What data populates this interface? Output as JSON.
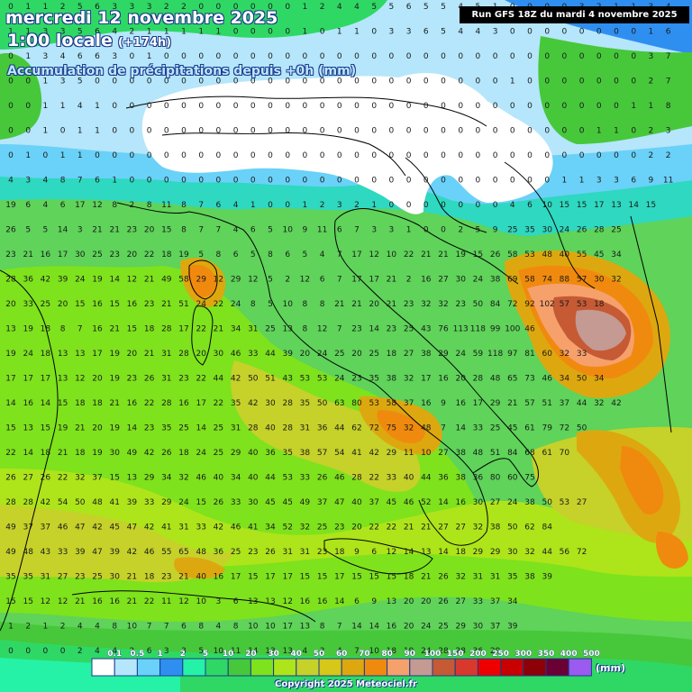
{
  "header": {
    "date": "mercredi 12 novembre 2025",
    "time": "1:00 locale",
    "lead": "(+174h)",
    "description": "Accumulation de précipitations depuis +0h (mm)",
    "run": "Run GFS 18Z du mardi 4 novembre 2025"
  },
  "legend": {
    "unit": "(mm)",
    "labels": [
      "0.1",
      "0.5",
      "1",
      "2",
      "5",
      "10",
      "20",
      "30",
      "40",
      "50",
      "60",
      "70",
      "80",
      "90",
      "100",
      "150",
      "200",
      "250",
      "300",
      "350",
      "400",
      "500"
    ],
    "colors": [
      "#ffffff",
      "#b5e6fb",
      "#6ad1f8",
      "#2f8ff0",
      "#25f2a6",
      "#2fd865",
      "#46c83a",
      "#7ee21c",
      "#aee41a",
      "#c6d12a",
      "#d6c718",
      "#dda80f",
      "#f08a0e",
      "#f6a06c",
      "#c49a92",
      "#c55a34",
      "#d8392c",
      "#ef0000",
      "#c80000",
      "#8e0007",
      "#6a0034",
      "#9b5af0"
    ]
  },
  "map": {
    "grid": [
      [
        "0",
        "1",
        "1",
        "2",
        "5",
        "6",
        "3",
        "3",
        "3",
        "2",
        "2",
        "0",
        "0",
        "0",
        "0",
        "0",
        "0",
        "1",
        "2",
        "4",
        "4",
        "5",
        "5",
        "6",
        "5",
        "5",
        "4",
        "5",
        "1",
        "0",
        "0",
        "0",
        "0",
        "3",
        "2",
        "1",
        "1",
        "3",
        "4",
        "5",
        "6",
        "4"
      ],
      [
        "1",
        "1",
        "3",
        "3",
        "5",
        "6",
        "4",
        "2",
        "1",
        "1",
        "1",
        "1",
        "1",
        "0",
        "0",
        "0",
        "0",
        "1",
        "0",
        "1",
        "1",
        "0",
        "3",
        "3",
        "6",
        "5",
        "4",
        "4",
        "3",
        "0",
        "0",
        "0",
        "0",
        "0",
        "0",
        "0",
        "0",
        "1",
        "6",
        "8"
      ],
      [
        "0",
        "1",
        "3",
        "4",
        "6",
        "6",
        "3",
        "0",
        "1",
        "0",
        "0",
        "0",
        "0",
        "0",
        "0",
        "0",
        "0",
        "0",
        "0",
        "0",
        "0",
        "0",
        "0",
        "0",
        "0",
        "0",
        "0",
        "0",
        "0",
        "0",
        "0",
        "0",
        "0",
        "0",
        "0",
        "0",
        "0",
        "3",
        "7",
        "11"
      ],
      [
        "0",
        "0",
        "1",
        "3",
        "5",
        "0",
        "0",
        "0",
        "0",
        "0",
        "0",
        "0",
        "0",
        "0",
        "0",
        "0",
        "0",
        "0",
        "0",
        "0",
        "0",
        "0",
        "0",
        "0",
        "0",
        "0",
        "0",
        "0",
        "0",
        "1",
        "0",
        "0",
        "0",
        "0",
        "0",
        "0",
        "0",
        "2",
        "7",
        "6"
      ],
      [
        "0",
        "0",
        "1",
        "1",
        "4",
        "1",
        "0",
        "0",
        "0",
        "0",
        "0",
        "0",
        "0",
        "0",
        "0",
        "0",
        "0",
        "0",
        "0",
        "0",
        "0",
        "0",
        "0",
        "0",
        "0",
        "0",
        "0",
        "0",
        "0",
        "0",
        "0",
        "0",
        "0",
        "0",
        "0",
        "0",
        "1",
        "1",
        "8",
        "8"
      ],
      [
        "0",
        "0",
        "1",
        "0",
        "1",
        "1",
        "0",
        "0",
        "0",
        "0",
        "0",
        "0",
        "0",
        "0",
        "0",
        "0",
        "0",
        "0",
        "0",
        "0",
        "0",
        "0",
        "0",
        "0",
        "0",
        "0",
        "0",
        "0",
        "0",
        "0",
        "0",
        "0",
        "0",
        "0",
        "1",
        "1",
        "0",
        "2",
        "3",
        "7"
      ],
      [
        "0",
        "1",
        "0",
        "1",
        "1",
        "0",
        "0",
        "0",
        "0",
        "0",
        "0",
        "0",
        "0",
        "0",
        "0",
        "0",
        "0",
        "0",
        "0",
        "0",
        "0",
        "0",
        "0",
        "0",
        "0",
        "0",
        "0",
        "0",
        "0",
        "0",
        "0",
        "0",
        "0",
        "0",
        "0",
        "0",
        "0",
        "2",
        "2",
        "7"
      ],
      [
        "4",
        "3",
        "4",
        "8",
        "7",
        "6",
        "1",
        "0",
        "0",
        "0",
        "0",
        "0",
        "0",
        "0",
        "0",
        "0",
        "0",
        "0",
        "0",
        "0",
        "0",
        "0",
        "0",
        "0",
        "0",
        "0",
        "0",
        "0",
        "0",
        "0",
        "0",
        "0",
        "1",
        "1",
        "3",
        "3",
        "6",
        "9",
        "11"
      ],
      [
        "19",
        "6",
        "4",
        "6",
        "17",
        "12",
        "8",
        "2",
        "8",
        "11",
        "8",
        "7",
        "6",
        "4",
        "1",
        "0",
        "0",
        "1",
        "2",
        "3",
        "2",
        "1",
        "0",
        "0",
        "0",
        "0",
        "0",
        "0",
        "0",
        "4",
        "6",
        "10",
        "15",
        "15",
        "17",
        "13",
        "14",
        "15"
      ],
      [
        "26",
        "5",
        "5",
        "14",
        "3",
        "21",
        "21",
        "23",
        "20",
        "15",
        "8",
        "7",
        "7",
        "4",
        "6",
        "5",
        "10",
        "9",
        "11",
        "6",
        "7",
        "3",
        "3",
        "1",
        "0",
        "0",
        "2",
        "5",
        "9",
        "25",
        "35",
        "30",
        "24",
        "26",
        "28",
        "25"
      ],
      [
        "23",
        "21",
        "16",
        "17",
        "30",
        "25",
        "23",
        "20",
        "22",
        "18",
        "19",
        "5",
        "8",
        "6",
        "5",
        "8",
        "6",
        "5",
        "4",
        "7",
        "17",
        "12",
        "10",
        "22",
        "21",
        "21",
        "19",
        "15",
        "26",
        "58",
        "53",
        "48",
        "40",
        "55",
        "45",
        "34"
      ],
      [
        "28",
        "36",
        "42",
        "39",
        "24",
        "19",
        "14",
        "12",
        "21",
        "49",
        "58",
        "29",
        "12",
        "29",
        "12",
        "5",
        "2",
        "12",
        "6",
        "7",
        "17",
        "17",
        "21",
        "2",
        "16",
        "27",
        "30",
        "24",
        "38",
        "69",
        "58",
        "74",
        "88",
        "57",
        "30",
        "32"
      ],
      [
        "20",
        "33",
        "25",
        "20",
        "15",
        "16",
        "15",
        "16",
        "23",
        "21",
        "51",
        "24",
        "22",
        "24",
        "8",
        "5",
        "10",
        "8",
        "8",
        "21",
        "21",
        "20",
        "21",
        "23",
        "32",
        "32",
        "23",
        "50",
        "84",
        "72",
        "92",
        "102",
        "57",
        "53",
        "18"
      ],
      [
        "13",
        "19",
        "18",
        "8",
        "7",
        "16",
        "21",
        "15",
        "18",
        "28",
        "17",
        "22",
        "21",
        "34",
        "31",
        "25",
        "13",
        "8",
        "12",
        "7",
        "23",
        "14",
        "23",
        "25",
        "43",
        "76",
        "113",
        "118",
        "99",
        "100",
        "46"
      ],
      [
        "19",
        "24",
        "18",
        "13",
        "13",
        "17",
        "19",
        "20",
        "21",
        "31",
        "28",
        "20",
        "30",
        "46",
        "33",
        "44",
        "39",
        "20",
        "24",
        "25",
        "20",
        "25",
        "18",
        "27",
        "38",
        "29",
        "24",
        "59",
        "118",
        "97",
        "81",
        "60",
        "32",
        "33"
      ],
      [
        "17",
        "17",
        "17",
        "13",
        "12",
        "20",
        "19",
        "23",
        "26",
        "31",
        "23",
        "22",
        "44",
        "42",
        "50",
        "51",
        "43",
        "53",
        "53",
        "24",
        "23",
        "35",
        "38",
        "32",
        "17",
        "16",
        "20",
        "28",
        "48",
        "65",
        "73",
        "46",
        "34",
        "50",
        "34"
      ],
      [
        "14",
        "16",
        "14",
        "15",
        "18",
        "18",
        "21",
        "16",
        "22",
        "28",
        "16",
        "17",
        "22",
        "35",
        "42",
        "30",
        "28",
        "35",
        "50",
        "63",
        "80",
        "53",
        "58",
        "37",
        "16",
        "9",
        "16",
        "17",
        "29",
        "21",
        "57",
        "51",
        "37",
        "44",
        "32",
        "42"
      ],
      [
        "15",
        "13",
        "15",
        "19",
        "21",
        "20",
        "19",
        "14",
        "23",
        "35",
        "25",
        "14",
        "25",
        "31",
        "28",
        "40",
        "28",
        "31",
        "36",
        "44",
        "62",
        "72",
        "75",
        "32",
        "48",
        "7",
        "14",
        "33",
        "25",
        "45",
        "61",
        "79",
        "72",
        "50"
      ],
      [
        "22",
        "14",
        "18",
        "21",
        "18",
        "19",
        "30",
        "49",
        "42",
        "26",
        "18",
        "24",
        "25",
        "29",
        "40",
        "36",
        "35",
        "38",
        "57",
        "54",
        "41",
        "42",
        "29",
        "11",
        "10",
        "27",
        "38",
        "48",
        "51",
        "84",
        "68",
        "61",
        "70"
      ],
      [
        "26",
        "27",
        "26",
        "22",
        "32",
        "37",
        "15",
        "13",
        "29",
        "34",
        "32",
        "46",
        "40",
        "34",
        "40",
        "44",
        "53",
        "33",
        "26",
        "46",
        "28",
        "22",
        "33",
        "40",
        "44",
        "36",
        "38",
        "36",
        "80",
        "60",
        "75"
      ],
      [
        "28",
        "28",
        "42",
        "54",
        "50",
        "48",
        "41",
        "39",
        "33",
        "29",
        "24",
        "15",
        "26",
        "33",
        "30",
        "45",
        "45",
        "49",
        "37",
        "47",
        "40",
        "37",
        "45",
        "46",
        "52",
        "14",
        "16",
        "30",
        "27",
        "24",
        "38",
        "50",
        "53",
        "27"
      ],
      [
        "49",
        "37",
        "37",
        "46",
        "47",
        "42",
        "45",
        "47",
        "42",
        "41",
        "31",
        "33",
        "42",
        "46",
        "41",
        "34",
        "52",
        "32",
        "25",
        "23",
        "20",
        "22",
        "22",
        "21",
        "21",
        "27",
        "27",
        "32",
        "38",
        "50",
        "62",
        "84"
      ],
      [
        "49",
        "48",
        "43",
        "33",
        "39",
        "47",
        "39",
        "42",
        "46",
        "55",
        "65",
        "48",
        "36",
        "25",
        "23",
        "26",
        "31",
        "31",
        "23",
        "18",
        "9",
        "6",
        "12",
        "14",
        "13",
        "14",
        "18",
        "29",
        "29",
        "30",
        "32",
        "44",
        "56",
        "72"
      ],
      [
        "35",
        "35",
        "31",
        "27",
        "23",
        "25",
        "30",
        "21",
        "18",
        "23",
        "21",
        "40",
        "16",
        "17",
        "15",
        "17",
        "17",
        "15",
        "15",
        "17",
        "15",
        "15",
        "15",
        "18",
        "21",
        "26",
        "32",
        "31",
        "31",
        "35",
        "38",
        "39"
      ],
      [
        "15",
        "15",
        "12",
        "12",
        "21",
        "16",
        "16",
        "21",
        "22",
        "11",
        "12",
        "10",
        "3",
        "6",
        "13",
        "13",
        "12",
        "16",
        "16",
        "14",
        "6",
        "9",
        "13",
        "20",
        "20",
        "26",
        "27",
        "33",
        "37",
        "34"
      ],
      [
        "1",
        "2",
        "1",
        "2",
        "4",
        "4",
        "8",
        "10",
        "7",
        "7",
        "6",
        "8",
        "4",
        "8",
        "10",
        "10",
        "17",
        "13",
        "8",
        "7",
        "14",
        "14",
        "16",
        "20",
        "24",
        "25",
        "29",
        "30",
        "37",
        "39"
      ],
      [
        "0",
        "0",
        "0",
        "0",
        "2",
        "4",
        "4",
        "2",
        "6",
        "3",
        "3",
        "5",
        "10",
        "11",
        "14",
        "13",
        "13",
        "4",
        "3",
        "4",
        "7",
        "10",
        "18",
        "19",
        "24",
        "28",
        "28",
        "36",
        "29"
      ]
    ]
  }
}
